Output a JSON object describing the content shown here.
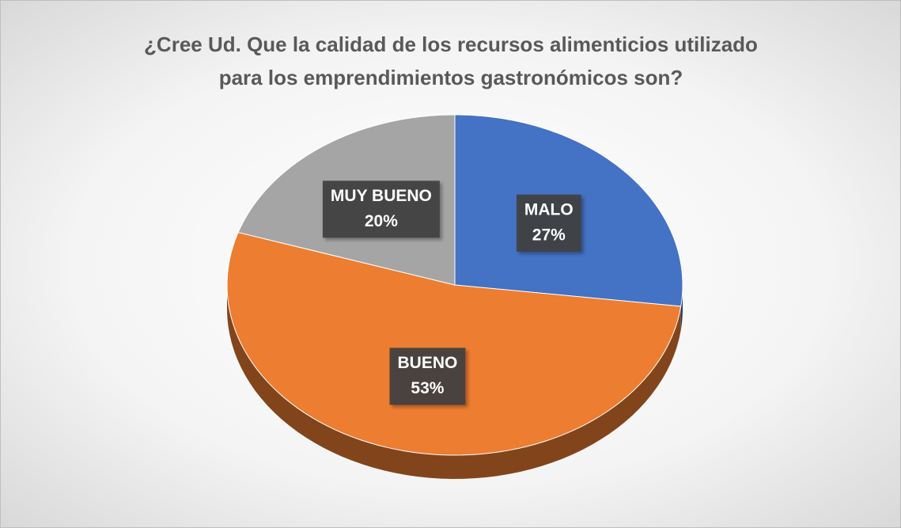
{
  "chart_data": {
    "type": "pie",
    "title": "¿Cree Ud. Que la calidad de los recursos alimenticios utilizado para los emprendimientos gastronómicos son?",
    "categories": [
      "MALO",
      "BUENO",
      "MUY BUENO"
    ],
    "values": [
      27,
      53,
      20
    ],
    "value_labels": [
      "27%",
      "53%",
      "20%"
    ],
    "colors": [
      "#4472c4",
      "#ed7d31",
      "#a5a5a5"
    ],
    "start_angle": 0
  }
}
